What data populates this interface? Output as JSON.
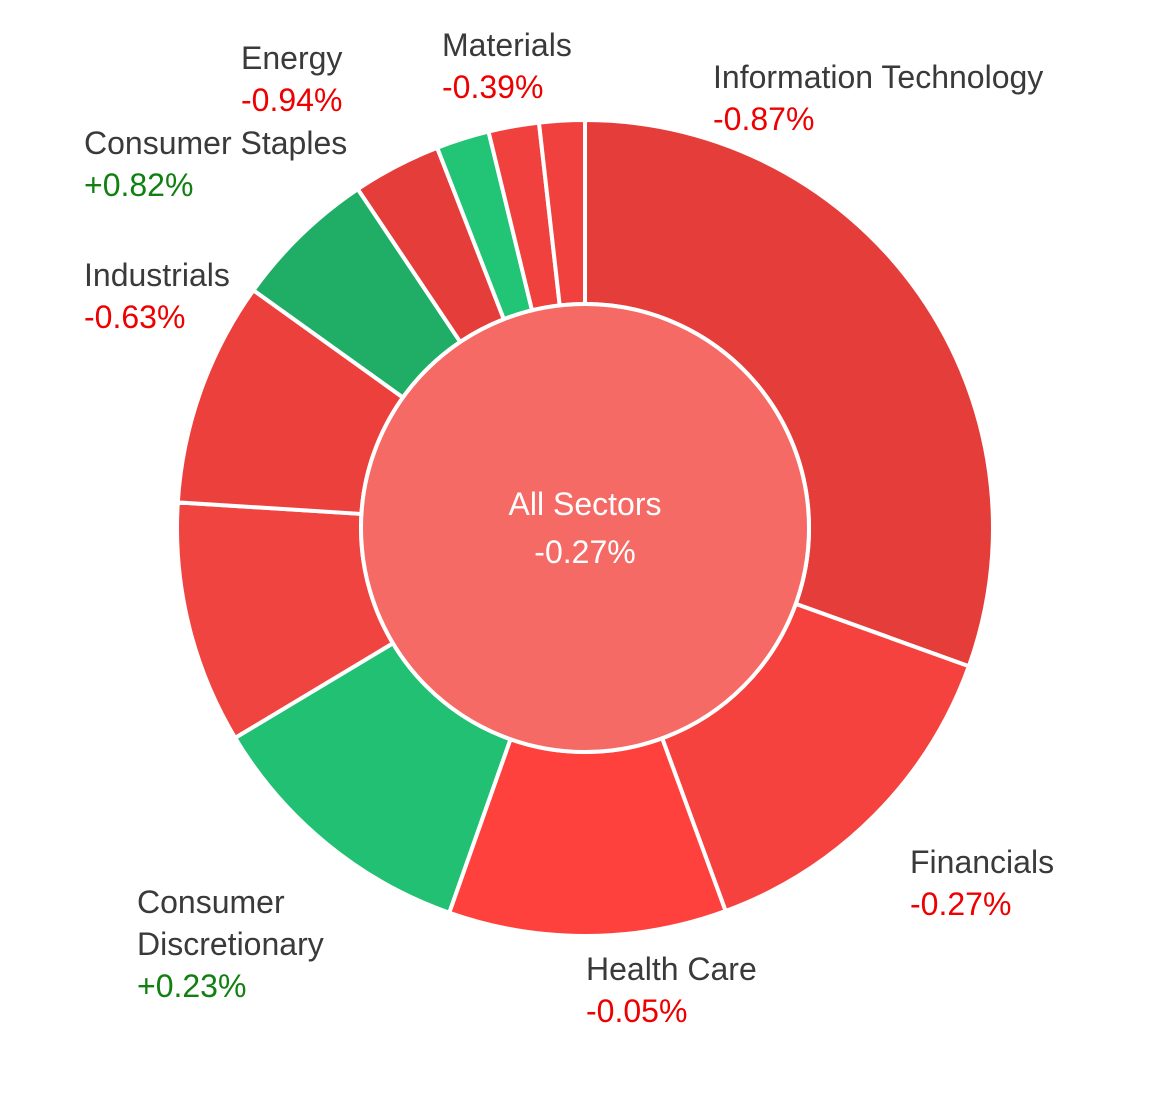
{
  "chart_data": {
    "type": "pie",
    "center": {
      "name": "All Sectors",
      "change": "-0.27%",
      "color": "#f66a66"
    },
    "slices": [
      {
        "name": "Information Technology",
        "share": 0.305,
        "change": "-0.87%",
        "color": "#e53d3a",
        "label_color": "#ee0000"
      },
      {
        "name": "Financials",
        "share": 0.139,
        "change": "-0.27%",
        "color": "#f5423e",
        "label_color": "#ee0000"
      },
      {
        "name": "Health Care",
        "share": 0.11,
        "change": "-0.05%",
        "color": "#ff413e",
        "label_color": "#ee0000"
      },
      {
        "name": "Consumer Discretionary",
        "share": 0.11,
        "change": "+0.23%",
        "color": "#22c073",
        "label_color": "#118011"
      },
      {
        "name": "",
        "share": 0.096,
        "change": "",
        "color": "#f04440",
        "label_color": "#ee0000"
      },
      {
        "name": "",
        "share": 0.089,
        "change": "",
        "color": "#ec403c",
        "label_color": "#ee0000"
      },
      {
        "name": "Industrials",
        "share": 0.057,
        "change": "-0.63%",
        "color": "#20ae67",
        "label_color": "#ee0000"
      },
      {
        "name": "",
        "share": 0.035,
        "change": "",
        "color": "#e53d3a",
        "label_color": "#ee0000"
      },
      {
        "name": "Consumer Staples",
        "share": 0.021,
        "change": "+0.82%",
        "color": "#22c475",
        "label_color": "#118011"
      },
      {
        "name": "Energy",
        "share": 0.02,
        "change": "-0.94%",
        "color": "#f0413e",
        "label_color": "#ee0000"
      },
      {
        "name": "Materials",
        "share": 0.018,
        "change": "-0.39%",
        "color": "#f0413e",
        "label_color": "#ee0000"
      }
    ]
  }
}
